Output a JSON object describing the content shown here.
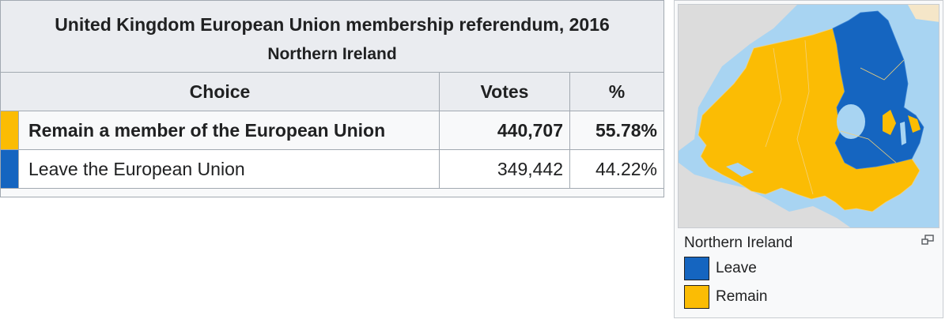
{
  "table": {
    "title": "United Kingdom European Union membership referendum, 2016",
    "subtitle": "Northern Ireland",
    "headers": {
      "choice": "Choice",
      "votes": "Votes",
      "percent": "%"
    },
    "rows": [
      {
        "choice": "Remain a member of the European Union",
        "votes": "440,707",
        "percent": "55.78%",
        "color": "#fbbc04",
        "winner": true
      },
      {
        "choice": "Leave the European Union",
        "votes": "349,442",
        "percent": "44.22%",
        "color": "#1565c0",
        "winner": false
      }
    ]
  },
  "map": {
    "caption": "Northern Ireland",
    "icons": {
      "enlarge": "magnify-icon"
    },
    "colors": {
      "sea": "#a8d4f2",
      "land": "#dcdcdc",
      "remain": "#fbbc04",
      "leave": "#1565c0",
      "lake": "#a8d4f2"
    },
    "legend": [
      {
        "label": "Leave",
        "color": "#1565c0"
      },
      {
        "label": "Remain",
        "color": "#fbbc04"
      }
    ]
  }
}
